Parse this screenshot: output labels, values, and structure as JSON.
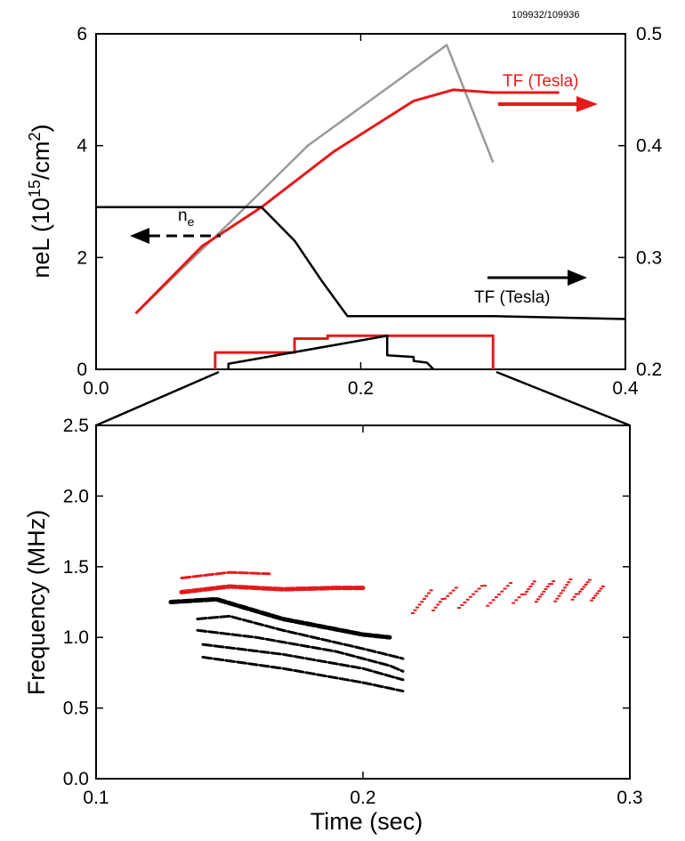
{
  "shot_label": "109932/109936",
  "chart_data": [
    {
      "type": "line",
      "ylabel_left": "neL (10",
      "ylabel_exp": "15",
      "ylabel_rest": "/cm",
      "ylabel_sq": "2",
      "ylabel_close": ")",
      "xlim": [
        0.0,
        0.4
      ],
      "ylim_left": [
        0,
        6
      ],
      "ylim_right": [
        0.2,
        0.5
      ],
      "x_ticks": [
        "0.0",
        "0.2",
        "0.4"
      ],
      "x_tick_values": [
        0.0,
        0.2,
        0.4
      ],
      "y_left_ticks": [
        "0",
        "2",
        "4",
        "6"
      ],
      "y_left_tick_values": [
        0,
        2,
        4,
        6
      ],
      "y_right_ticks": [
        "0.2",
        "0.3",
        "0.4",
        "0.5"
      ],
      "y_right_tick_values": [
        0.2,
        0.3,
        0.4,
        0.5
      ],
      "colors": {
        "red": "#e41a1c",
        "black": "#000000",
        "gray": "#9a9a9a"
      },
      "annotations": {
        "tf_red": "TF (Tesla)",
        "tf_black": "TF (Tesla)",
        "ne": "n",
        "ne_sub": "e"
      },
      "series": [
        {
          "color": "gray",
          "axis": "left",
          "x": [
            0.03,
            0.1,
            0.16,
            0.23,
            0.265,
            0.3
          ],
          "y": [
            1.0,
            2.6,
            4.0,
            5.2,
            5.8,
            3.7
          ]
        },
        {
          "color": "red",
          "axis": "left",
          "x": [
            0.03,
            0.08,
            0.125,
            0.18,
            0.24,
            0.27,
            0.3,
            0.35
          ],
          "y": [
            1.0,
            2.2,
            2.9,
            3.9,
            4.8,
            5.0,
            4.95,
            4.95
          ]
        },
        {
          "color": "black",
          "axis": "left",
          "x": [
            0.0,
            0.125,
            0.15,
            0.17,
            0.19,
            0.25,
            0.3,
            0.4
          ],
          "y": [
            2.9,
            2.9,
            2.3,
            1.6,
            0.95,
            0.95,
            0.95,
            0.9
          ]
        },
        {
          "color": "red",
          "axis": "left",
          "x": [
            0.09,
            0.09,
            0.15,
            0.15,
            0.175,
            0.175,
            0.3,
            0.3
          ],
          "y": [
            0.0,
            0.3,
            0.3,
            0.55,
            0.55,
            0.6,
            0.6,
            0.0
          ]
        },
        {
          "color": "black",
          "axis": "left",
          "x": [
            0.1,
            0.1,
            0.22,
            0.22,
            0.24,
            0.24,
            0.25,
            0.255
          ],
          "y": [
            0.0,
            0.1,
            0.6,
            0.25,
            0.22,
            0.15,
            0.12,
            0.0
          ]
        }
      ]
    },
    {
      "type": "scatter",
      "xlabel": "Time (sec)",
      "ylabel": "Frequency (MHz)",
      "xlim": [
        0.1,
        0.3
      ],
      "ylim": [
        0.0,
        2.5
      ],
      "x_ticks": [
        "0.1",
        "0.2",
        "0.3"
      ],
      "x_tick_values": [
        0.1,
        0.2,
        0.3
      ],
      "y_ticks": [
        "0.0",
        "0.5",
        "1.0",
        "1.5",
        "2.0",
        "2.5"
      ],
      "y_tick_values": [
        0.0,
        0.5,
        1.0,
        1.5,
        2.0,
        2.5
      ],
      "series": [
        {
          "color": "red",
          "kind": "band",
          "x": [
            0.132,
            0.15,
            0.17,
            0.19,
            0.2
          ],
          "y": [
            1.32,
            1.36,
            1.34,
            1.35,
            1.35
          ]
        },
        {
          "color": "red",
          "kind": "band",
          "x": [
            0.132,
            0.15,
            0.165
          ],
          "y": [
            1.42,
            1.46,
            1.45
          ]
        },
        {
          "color": "red",
          "kind": "cloud",
          "x": [
            0.218,
            0.23,
            0.245,
            0.26,
            0.27,
            0.28,
            0.29
          ],
          "y": [
            1.25,
            1.28,
            1.3,
            1.33,
            1.33,
            1.35,
            1.33
          ]
        },
        {
          "color": "black",
          "kind": "band",
          "x": [
            0.128,
            0.145,
            0.17,
            0.2,
            0.21
          ],
          "y": [
            1.25,
            1.27,
            1.13,
            1.02,
            1.0
          ]
        },
        {
          "color": "black",
          "kind": "band",
          "x": [
            0.138,
            0.15,
            0.17,
            0.2,
            0.215
          ],
          "y": [
            1.13,
            1.15,
            1.05,
            0.92,
            0.85
          ]
        },
        {
          "color": "black",
          "kind": "band",
          "x": [
            0.138,
            0.16,
            0.19,
            0.21,
            0.215
          ],
          "y": [
            1.05,
            1.0,
            0.9,
            0.8,
            0.76
          ]
        },
        {
          "color": "black",
          "kind": "band",
          "x": [
            0.14,
            0.17,
            0.2,
            0.215
          ],
          "y": [
            0.95,
            0.88,
            0.78,
            0.7
          ]
        },
        {
          "color": "black",
          "kind": "band",
          "x": [
            0.14,
            0.17,
            0.2,
            0.215
          ],
          "y": [
            0.86,
            0.78,
            0.68,
            0.62
          ]
        }
      ]
    }
  ]
}
